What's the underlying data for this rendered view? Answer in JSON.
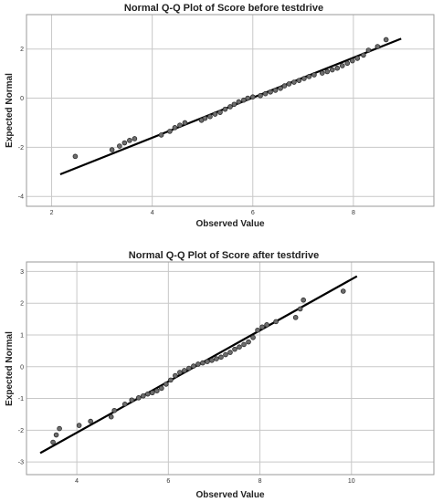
{
  "chart_data": [
    {
      "type": "scatter",
      "title": "Normal Q-Q Plot of Score before testdrive",
      "xlabel": "Observed Value",
      "ylabel": "Expected Normal",
      "xlim": [
        1.5,
        9.6
      ],
      "ylim": [
        -4.4,
        3.4
      ],
      "xticks": [
        2,
        4,
        6,
        8
      ],
      "yticks": [
        -4,
        -2,
        0,
        2
      ],
      "grid": true,
      "reference_line": [
        [
          2.17,
          -3.1
        ],
        [
          8.95,
          2.42
        ]
      ],
      "points": [
        [
          2.47,
          -2.37
        ],
        [
          3.2,
          -2.1
        ],
        [
          3.35,
          -1.95
        ],
        [
          3.45,
          -1.82
        ],
        [
          3.55,
          -1.72
        ],
        [
          3.65,
          -1.65
        ],
        [
          4.18,
          -1.5
        ],
        [
          4.35,
          -1.35
        ],
        [
          4.45,
          -1.2
        ],
        [
          4.55,
          -1.1
        ],
        [
          4.65,
          -1.0
        ],
        [
          4.98,
          -0.9
        ],
        [
          5.05,
          -0.82
        ],
        [
          5.15,
          -0.75
        ],
        [
          5.25,
          -0.65
        ],
        [
          5.35,
          -0.58
        ],
        [
          5.45,
          -0.45
        ],
        [
          5.55,
          -0.35
        ],
        [
          5.63,
          -0.25
        ],
        [
          5.72,
          -0.15
        ],
        [
          5.82,
          -0.08
        ],
        [
          5.9,
          0.0
        ],
        [
          6.0,
          0.05
        ],
        [
          6.15,
          0.1
        ],
        [
          6.25,
          0.18
        ],
        [
          6.35,
          0.25
        ],
        [
          6.45,
          0.32
        ],
        [
          6.55,
          0.4
        ],
        [
          6.63,
          0.5
        ],
        [
          6.72,
          0.58
        ],
        [
          6.82,
          0.65
        ],
        [
          6.92,
          0.72
        ],
        [
          7.02,
          0.8
        ],
        [
          7.12,
          0.88
        ],
        [
          7.22,
          0.95
        ],
        [
          7.38,
          1.02
        ],
        [
          7.48,
          1.08
        ],
        [
          7.58,
          1.15
        ],
        [
          7.68,
          1.22
        ],
        [
          7.78,
          1.32
        ],
        [
          7.88,
          1.42
        ],
        [
          7.98,
          1.52
        ],
        [
          8.08,
          1.62
        ],
        [
          8.2,
          1.75
        ],
        [
          8.3,
          1.95
        ],
        [
          8.48,
          2.1
        ],
        [
          8.65,
          2.38
        ]
      ]
    },
    {
      "type": "scatter",
      "title": "Normal Q-Q Plot of Score after testdrive",
      "xlabel": "Observed Value",
      "ylabel": "Expected Normal",
      "xlim": [
        2.9,
        11.8
      ],
      "ylim": [
        -3.4,
        3.3
      ],
      "xticks": [
        4,
        6,
        8,
        10
      ],
      "yticks": [
        -3,
        -2,
        -1,
        0,
        1,
        2,
        3
      ],
      "grid": true,
      "reference_line": [
        [
          3.2,
          -2.72
        ],
        [
          10.12,
          2.85
        ]
      ],
      "points": [
        [
          3.48,
          -2.38
        ],
        [
          3.55,
          -2.15
        ],
        [
          3.62,
          -1.95
        ],
        [
          4.05,
          -1.85
        ],
        [
          4.3,
          -1.72
        ],
        [
          4.75,
          -1.58
        ],
        [
          4.82,
          -1.38
        ],
        [
          5.05,
          -1.18
        ],
        [
          5.2,
          -1.05
        ],
        [
          5.35,
          -0.98
        ],
        [
          5.45,
          -0.92
        ],
        [
          5.55,
          -0.86
        ],
        [
          5.65,
          -0.82
        ],
        [
          5.75,
          -0.76
        ],
        [
          5.85,
          -0.68
        ],
        [
          5.95,
          -0.55
        ],
        [
          6.05,
          -0.42
        ],
        [
          6.15,
          -0.28
        ],
        [
          6.25,
          -0.18
        ],
        [
          6.35,
          -0.12
        ],
        [
          6.45,
          -0.05
        ],
        [
          6.55,
          0.02
        ],
        [
          6.65,
          0.08
        ],
        [
          6.75,
          0.12
        ],
        [
          6.85,
          0.16
        ],
        [
          6.95,
          0.2
        ],
        [
          7.05,
          0.25
        ],
        [
          7.15,
          0.3
        ],
        [
          7.25,
          0.38
        ],
        [
          7.35,
          0.45
        ],
        [
          7.45,
          0.55
        ],
        [
          7.55,
          0.62
        ],
        [
          7.65,
          0.7
        ],
        [
          7.75,
          0.78
        ],
        [
          7.85,
          0.92
        ],
        [
          7.95,
          1.15
        ],
        [
          8.05,
          1.25
        ],
        [
          8.15,
          1.32
        ],
        [
          8.35,
          1.42
        ],
        [
          8.78,
          1.55
        ],
        [
          8.88,
          1.82
        ],
        [
          8.95,
          2.1
        ],
        [
          9.82,
          2.38
        ]
      ]
    }
  ]
}
